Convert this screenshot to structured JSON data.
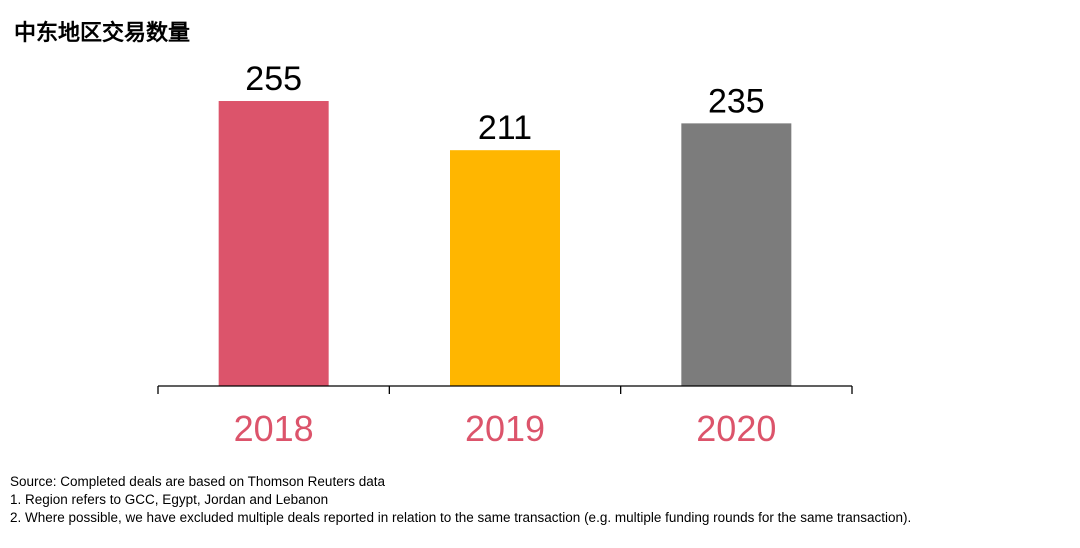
{
  "title": "中东地区交易数量",
  "chart_data": {
    "type": "bar",
    "title": "中东地区交易数量",
    "categories": [
      "2018",
      "2019",
      "2020"
    ],
    "values": [
      255,
      211,
      235
    ],
    "data_labels": [
      "255",
      "211",
      "235"
    ],
    "colors": [
      "#dc546b",
      "#ffb600",
      "#7c7c7c"
    ],
    "category_label_color": "#dc546b",
    "xlabel": "",
    "ylabel": "",
    "ylim": [
      0,
      255
    ],
    "grid": false,
    "legend": "none"
  },
  "notes": [
    "Source: Completed deals are based on Thomson Reuters data",
    "1. Region refers to GCC, Egypt, Jordan and Lebanon",
    "2. Where possible, we have excluded multiple deals reported in relation to the same transaction (e.g. multiple funding rounds for the same transaction)."
  ]
}
